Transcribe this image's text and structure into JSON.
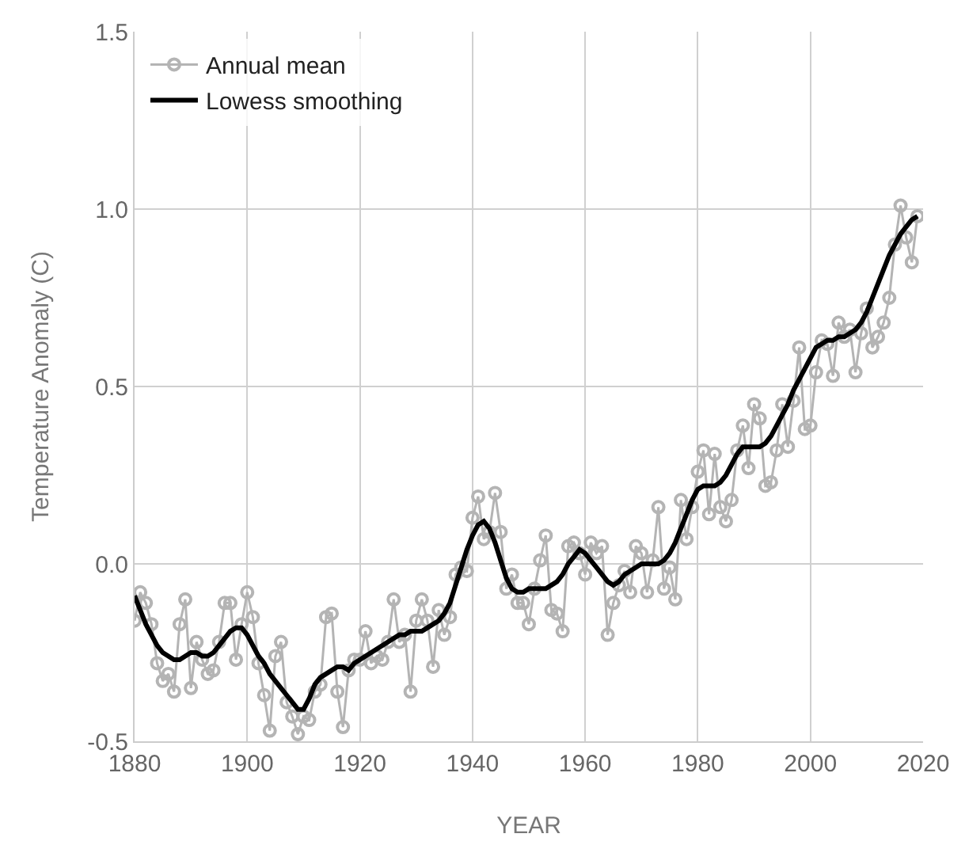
{
  "chart_data": {
    "type": "line",
    "xlabel": "YEAR",
    "ylabel": "Temperature Anomaly (C)",
    "x": [
      1880,
      1881,
      1882,
      1883,
      1884,
      1885,
      1886,
      1887,
      1888,
      1889,
      1890,
      1891,
      1892,
      1893,
      1894,
      1895,
      1896,
      1897,
      1898,
      1899,
      1900,
      1901,
      1902,
      1903,
      1904,
      1905,
      1906,
      1907,
      1908,
      1909,
      1910,
      1911,
      1912,
      1913,
      1914,
      1915,
      1916,
      1917,
      1918,
      1919,
      1920,
      1921,
      1922,
      1923,
      1924,
      1925,
      1926,
      1927,
      1928,
      1929,
      1930,
      1931,
      1932,
      1933,
      1934,
      1935,
      1936,
      1937,
      1938,
      1939,
      1940,
      1941,
      1942,
      1943,
      1944,
      1945,
      1946,
      1947,
      1948,
      1949,
      1950,
      1951,
      1952,
      1953,
      1954,
      1955,
      1956,
      1957,
      1958,
      1959,
      1960,
      1961,
      1962,
      1963,
      1964,
      1965,
      1966,
      1967,
      1968,
      1969,
      1970,
      1971,
      1972,
      1973,
      1974,
      1975,
      1976,
      1977,
      1978,
      1979,
      1980,
      1981,
      1982,
      1983,
      1984,
      1985,
      1986,
      1987,
      1988,
      1989,
      1990,
      1991,
      1992,
      1993,
      1994,
      1995,
      1996,
      1997,
      1998,
      1999,
      2000,
      2001,
      2002,
      2003,
      2004,
      2005,
      2006,
      2007,
      2008,
      2009,
      2010,
      2011,
      2012,
      2013,
      2014,
      2015,
      2016,
      2017,
      2018,
      2019
    ],
    "series": [
      {
        "name": "Annual mean",
        "color": "#b4b4b4",
        "marker": "circle",
        "values": [
          -0.16,
          -0.08,
          -0.11,
          -0.17,
          -0.28,
          -0.33,
          -0.31,
          -0.36,
          -0.17,
          -0.1,
          -0.35,
          -0.22,
          -0.27,
          -0.31,
          -0.3,
          -0.22,
          -0.11,
          -0.11,
          -0.27,
          -0.17,
          -0.08,
          -0.15,
          -0.28,
          -0.37,
          -0.47,
          -0.26,
          -0.22,
          -0.39,
          -0.43,
          -0.48,
          -0.43,
          -0.44,
          -0.36,
          -0.34,
          -0.15,
          -0.14,
          -0.36,
          -0.46,
          -0.3,
          -0.27,
          -0.27,
          -0.19,
          -0.28,
          -0.26,
          -0.27,
          -0.22,
          -0.1,
          -0.22,
          -0.2,
          -0.36,
          -0.16,
          -0.1,
          -0.16,
          -0.29,
          -0.13,
          -0.2,
          -0.15,
          -0.03,
          -0.01,
          -0.02,
          0.13,
          0.19,
          0.07,
          0.09,
          0.2,
          0.09,
          -0.07,
          -0.03,
          -0.11,
          -0.11,
          -0.17,
          -0.07,
          0.01,
          0.08,
          -0.13,
          -0.14,
          -0.19,
          0.05,
          0.06,
          0.03,
          -0.03,
          0.06,
          0.03,
          0.05,
          -0.2,
          -0.11,
          -0.06,
          -0.02,
          -0.08,
          0.05,
          0.03,
          -0.08,
          0.01,
          0.16,
          -0.07,
          -0.01,
          -0.1,
          0.18,
          0.07,
          0.16,
          0.26,
          0.32,
          0.14,
          0.31,
          0.16,
          0.12,
          0.18,
          0.32,
          0.39,
          0.27,
          0.45,
          0.41,
          0.22,
          0.23,
          0.32,
          0.45,
          0.33,
          0.46,
          0.61,
          0.38,
          0.39,
          0.54,
          0.63,
          0.62,
          0.53,
          0.68,
          0.64,
          0.66,
          0.54,
          0.65,
          0.72,
          0.61,
          0.64,
          0.68,
          0.75,
          0.9,
          1.01,
          0.92,
          0.85,
          0.98
        ]
      },
      {
        "name": "Lowess smoothing",
        "color": "#000000",
        "marker": "none",
        "values": [
          -0.09,
          -0.13,
          -0.17,
          -0.2,
          -0.23,
          -0.25,
          -0.26,
          -0.27,
          -0.27,
          -0.26,
          -0.25,
          -0.25,
          -0.26,
          -0.26,
          -0.25,
          -0.23,
          -0.21,
          -0.19,
          -0.18,
          -0.18,
          -0.2,
          -0.23,
          -0.26,
          -0.28,
          -0.31,
          -0.33,
          -0.35,
          -0.37,
          -0.39,
          -0.41,
          -0.41,
          -0.38,
          -0.34,
          -0.32,
          -0.31,
          -0.3,
          -0.29,
          -0.29,
          -0.3,
          -0.28,
          -0.27,
          -0.26,
          -0.25,
          -0.24,
          -0.23,
          -0.22,
          -0.21,
          -0.2,
          -0.2,
          -0.19,
          -0.19,
          -0.19,
          -0.18,
          -0.17,
          -0.16,
          -0.14,
          -0.11,
          -0.06,
          -0.01,
          0.04,
          0.08,
          0.11,
          0.12,
          0.1,
          0.06,
          0.01,
          -0.04,
          -0.07,
          -0.08,
          -0.08,
          -0.07,
          -0.07,
          -0.07,
          -0.07,
          -0.06,
          -0.05,
          -0.03,
          0.0,
          0.02,
          0.04,
          0.03,
          0.01,
          -0.01,
          -0.03,
          -0.05,
          -0.06,
          -0.05,
          -0.03,
          -0.02,
          -0.01,
          0.0,
          0.0,
          0.0,
          0.0,
          0.01,
          0.03,
          0.06,
          0.1,
          0.14,
          0.18,
          0.21,
          0.22,
          0.22,
          0.22,
          0.23,
          0.25,
          0.28,
          0.31,
          0.33,
          0.33,
          0.33,
          0.33,
          0.34,
          0.36,
          0.39,
          0.42,
          0.45,
          0.49,
          0.52,
          0.55,
          0.58,
          0.61,
          0.62,
          0.63,
          0.63,
          0.64,
          0.64,
          0.65,
          0.66,
          0.68,
          0.71,
          0.75,
          0.79,
          0.83,
          0.87,
          0.9,
          0.93,
          0.95,
          0.97,
          0.98
        ]
      }
    ],
    "xlim": [
      1880,
      2020
    ],
    "xticks": [
      1880,
      1900,
      1920,
      1940,
      1960,
      1980,
      2000,
      2020
    ],
    "ylim": [
      -0.5,
      1.5
    ],
    "yticks": [
      {
        "value": -0.5,
        "label": "-0.5"
      },
      {
        "value": 0,
        "label": "0.0"
      },
      {
        "value": 0.5,
        "label": "0.5"
      },
      {
        "value": 1,
        "label": "1.0"
      },
      {
        "value": 1.5,
        "label": "1.5"
      }
    ],
    "grid": true,
    "legend": "top left",
    "line_style": "solid"
  }
}
